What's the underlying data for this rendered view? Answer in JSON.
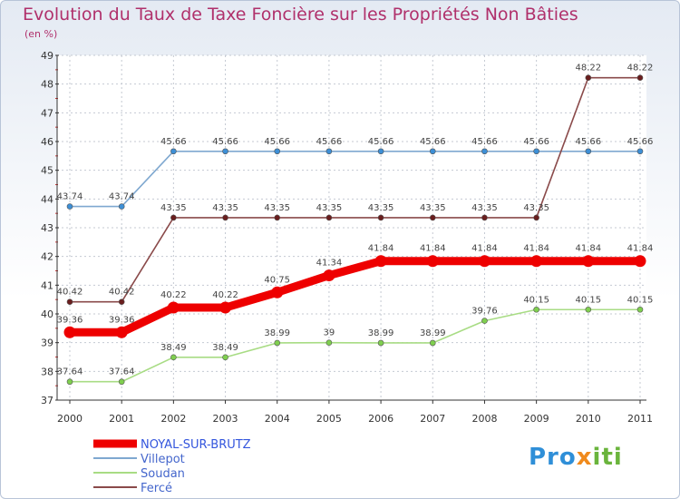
{
  "chart_data": {
    "type": "line",
    "title": "Evolution du Taux de Taxe Foncière sur les Propriétés Non Bâties",
    "unit_label": "(en %)",
    "xlabel": "",
    "ylabel": "(en %)",
    "categories": [
      "2000",
      "2001",
      "2002",
      "2003",
      "2004",
      "2005",
      "2006",
      "2007",
      "2008",
      "2009",
      "2010",
      "2011"
    ],
    "ylim": [
      37,
      49
    ],
    "yticks": [
      37,
      38,
      39,
      40,
      41,
      42,
      43,
      44,
      45,
      46,
      47,
      48,
      49
    ],
    "legend_position": "bottom-left",
    "series": [
      {
        "name": "NOYAL-SUR-BRUTZ",
        "color": "#ee0000",
        "point_color": "#ee0000",
        "emphasis": true,
        "values": [
          39.36,
          39.36,
          40.22,
          40.22,
          40.75,
          41.34,
          41.84,
          41.84,
          41.84,
          41.84,
          41.84,
          41.84
        ],
        "labels": [
          "39.36",
          "39.36",
          "40.22",
          "40.22",
          "40.75",
          "41.34",
          "41.84",
          "41.84",
          "41.84",
          "41.84",
          "41.84",
          "41.84"
        ]
      },
      {
        "name": "Villepot",
        "color": "#7fa8d0",
        "point_color": "#3d8fd6",
        "emphasis": false,
        "values": [
          43.74,
          43.74,
          45.66,
          45.66,
          45.66,
          45.66,
          45.66,
          45.66,
          45.66,
          45.66,
          45.66,
          45.66
        ],
        "labels": [
          "43.74",
          "43.74",
          "45.66",
          "45.66",
          "45.66",
          "45.66",
          "45.66",
          "45.66",
          "45.66",
          "45.66",
          "45.66",
          "45.66"
        ]
      },
      {
        "name": "Soudan",
        "color": "#a8dc84",
        "point_color": "#7fcf4f",
        "emphasis": false,
        "values": [
          37.64,
          37.64,
          38.49,
          38.49,
          38.99,
          39,
          38.99,
          38.99,
          39.76,
          40.15,
          40.15,
          40.15
        ],
        "labels": [
          "37.64",
          "37.64",
          "38.49",
          "38.49",
          "38.99",
          "39",
          "38.99",
          "38.99",
          "39.76",
          "40.15",
          "40.15",
          "40.15"
        ]
      },
      {
        "name": "Fercé",
        "color": "#8a4a4a",
        "point_color": "#6a1e1e",
        "emphasis": false,
        "values": [
          40.42,
          40.42,
          43.35,
          43.35,
          43.35,
          43.35,
          43.35,
          43.35,
          43.35,
          43.35,
          48.22,
          48.22
        ],
        "labels": [
          "40.42",
          "40.42",
          "43.35",
          "43.35",
          "43.35",
          "43.35",
          "43.35",
          "43.35",
          "43.35",
          "43.35",
          "48.22",
          "48.22"
        ]
      }
    ]
  },
  "branding": {
    "logo_part1": "Pro",
    "logo_part2": "x",
    "logo_part3": "iti"
  }
}
